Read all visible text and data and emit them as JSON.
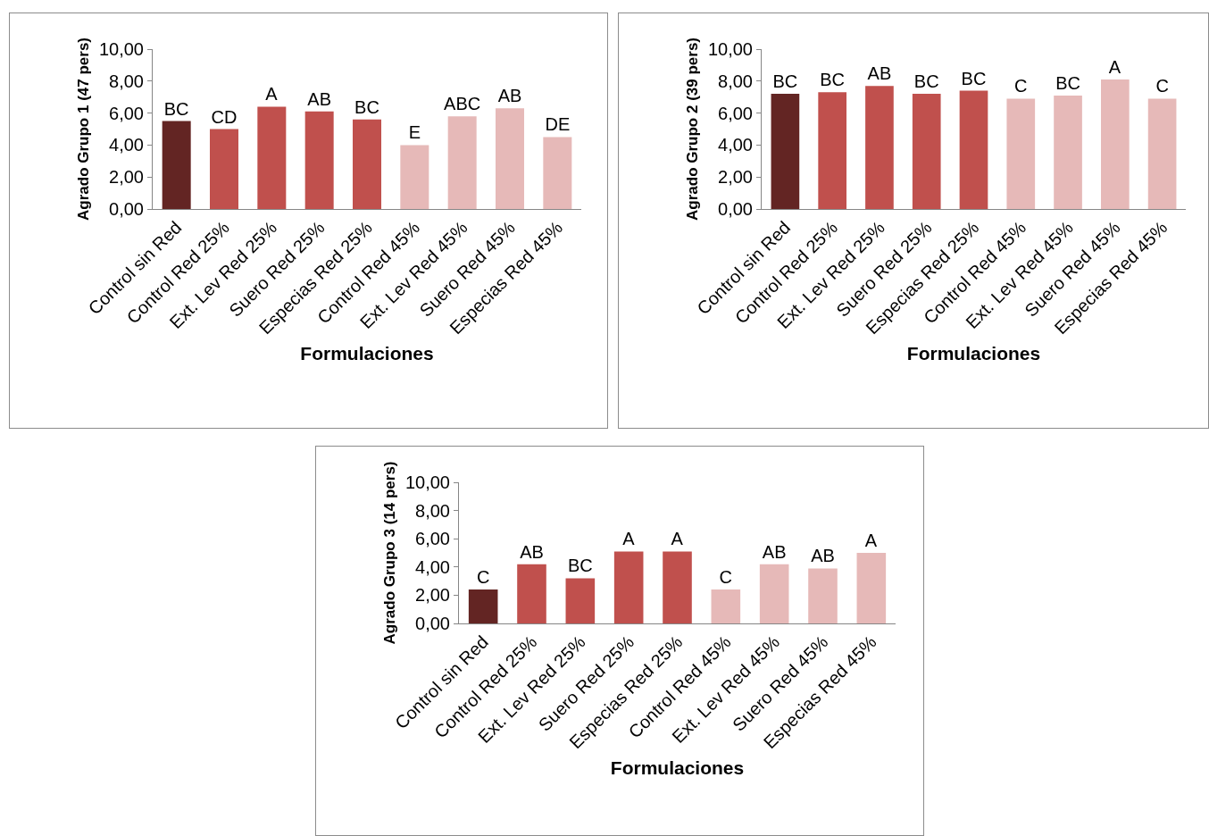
{
  "chart_data": [
    {
      "type": "bar",
      "ylabel": "Agrado Grupo 1 (47 pers)",
      "xlabel": "Formulaciones",
      "categories": [
        "Control sin Red",
        "Control Red 25%",
        "Ext. Lev Red 25%",
        "Suero Red 25%",
        "Especias Red 25%",
        "Control Red 45%",
        "Ext. Lev Red 45%",
        "Suero Red 45%",
        "Especias Red 45%"
      ],
      "values": [
        5.5,
        5.0,
        6.4,
        6.1,
        5.6,
        4.0,
        5.8,
        6.3,
        4.5
      ],
      "colors": [
        "#632523",
        "#c0504d",
        "#c0504d",
        "#c0504d",
        "#c0504d",
        "#e6b9b8",
        "#e6b9b8",
        "#e6b9b8",
        "#e6b9b8"
      ],
      "value_labels": [
        "BC",
        "CD",
        "A",
        "AB",
        "BC",
        "E",
        "ABC",
        "AB",
        "DE"
      ],
      "ylim": [
        0,
        10
      ],
      "yticks": [
        {
          "value": 0,
          "label": "0,00"
        },
        {
          "value": 2,
          "label": "2,00"
        },
        {
          "value": 4,
          "label": "4,00"
        },
        {
          "value": 6,
          "label": "6,00"
        },
        {
          "value": 8,
          "label": "8,00"
        },
        {
          "value": 10,
          "label": "10,00"
        }
      ]
    },
    {
      "type": "bar",
      "ylabel": "Agrado Grupo 2 (39 pers)",
      "xlabel": "Formulaciones",
      "categories": [
        "Control sin Red",
        "Control Red 25%",
        "Ext. Lev Red 25%",
        "Suero Red 25%",
        "Especias Red 25%",
        "Control Red 45%",
        "Ext. Lev Red 45%",
        "Suero Red 45%",
        "Especias Red 45%"
      ],
      "values": [
        7.2,
        7.3,
        7.7,
        7.2,
        7.4,
        6.9,
        7.1,
        8.1,
        6.9
      ],
      "colors": [
        "#632523",
        "#c0504d",
        "#c0504d",
        "#c0504d",
        "#c0504d",
        "#e6b9b8",
        "#e6b9b8",
        "#e6b9b8",
        "#e6b9b8"
      ],
      "value_labels": [
        "BC",
        "BC",
        "AB",
        "BC",
        "BC",
        "C",
        "BC",
        "A",
        "C"
      ],
      "ylim": [
        0,
        10
      ],
      "yticks": [
        {
          "value": 0,
          "label": "0,00"
        },
        {
          "value": 2,
          "label": "2,00"
        },
        {
          "value": 4,
          "label": "4,00"
        },
        {
          "value": 6,
          "label": "6,00"
        },
        {
          "value": 8,
          "label": "8,00"
        },
        {
          "value": 10,
          "label": "10,00"
        }
      ]
    },
    {
      "type": "bar",
      "ylabel": "Agrado Grupo 3 (14 pers)",
      "xlabel": "Formulaciones",
      "categories": [
        "Control sin Red",
        "Control Red 25%",
        "Ext. Lev Red 25%",
        "Suero Red 25%",
        "Especias Red 25%",
        "Control Red 45%",
        "Ext. Lev Red 45%",
        "Suero Red 45%",
        "Especias Red 45%"
      ],
      "values": [
        2.4,
        4.2,
        3.2,
        5.1,
        5.1,
        2.4,
        4.2,
        3.9,
        5.0
      ],
      "colors": [
        "#632523",
        "#c0504d",
        "#c0504d",
        "#c0504d",
        "#c0504d",
        "#e6b9b8",
        "#e6b9b8",
        "#e6b9b8",
        "#e6b9b8"
      ],
      "value_labels": [
        "C",
        "AB",
        "BC",
        "A",
        "A",
        "C",
        "AB",
        "AB",
        "A"
      ],
      "ylim": [
        0,
        10
      ],
      "yticks": [
        {
          "value": 0,
          "label": "0,00"
        },
        {
          "value": 2,
          "label": "2,00"
        },
        {
          "value": 4,
          "label": "4,00"
        },
        {
          "value": 6,
          "label": "6,00"
        },
        {
          "value": 8,
          "label": "8,00"
        },
        {
          "value": 10,
          "label": "10,00"
        }
      ]
    }
  ]
}
